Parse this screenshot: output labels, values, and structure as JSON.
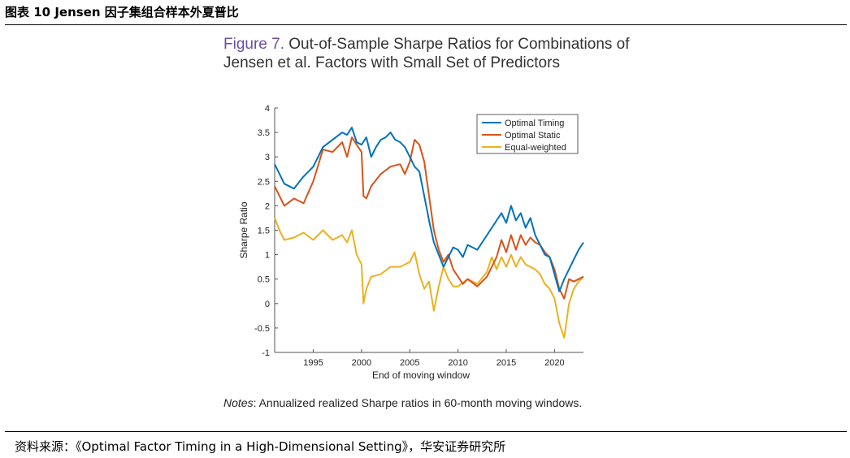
{
  "header": {
    "title": "图表 10 Jensen 因子集组合样本外夏普比"
  },
  "figure": {
    "label": "Figure 7.",
    "title": "Out-of-Sample Sharpe Ratios for Combinations of Jensen et al. Factors with Small Set of Predictors",
    "notes_label": "Notes",
    "notes_text": ": Annualized realized Sharpe ratios in 60-month moving windows."
  },
  "source": "资料来源：《Optimal Factor Timing in a High-Dimensional Setting》，华安证券研究所",
  "chart_data": {
    "type": "line",
    "title": "",
    "xlabel": "End of moving window",
    "ylabel": "Sharpe Ratio",
    "xlim": [
      1991,
      2023
    ],
    "ylim": [
      -1,
      4
    ],
    "xticks": [
      1995,
      2000,
      2005,
      2010,
      2015,
      2020
    ],
    "yticks": [
      4,
      3.5,
      3,
      2.5,
      2,
      1.5,
      1,
      0.5,
      0,
      -0.5,
      -1
    ],
    "legend_position": "top-right",
    "series": [
      {
        "name": "Optimal Timing",
        "color": "#0072BD",
        "x": [
          1991,
          1992,
          1993,
          1994,
          1995,
          1996,
          1997,
          1998,
          1998.5,
          1999,
          1999.5,
          2000,
          2000.5,
          2001,
          2001.5,
          2002,
          2002.5,
          2003,
          2003.5,
          2004,
          2004.5,
          2005,
          2005.5,
          2006,
          2006.5,
          2007,
          2007.5,
          2008,
          2008.5,
          2009,
          2009.5,
          2010,
          2010.5,
          2011,
          2012,
          2013,
          2014,
          2014.5,
          2015,
          2015.5,
          2016,
          2016.5,
          2017,
          2017.5,
          2018,
          2018.5,
          2019,
          2019.5,
          2020,
          2020.5,
          2021,
          2021.5,
          2022,
          2022.5,
          2023
        ],
        "values": [
          2.85,
          2.45,
          2.35,
          2.6,
          2.8,
          3.2,
          3.35,
          3.5,
          3.45,
          3.6,
          3.3,
          3.25,
          3.4,
          3.0,
          3.2,
          3.35,
          3.4,
          3.5,
          3.35,
          3.3,
          3.2,
          3.0,
          2.8,
          2.7,
          2.2,
          1.7,
          1.25,
          1.0,
          0.75,
          0.95,
          1.15,
          1.1,
          0.95,
          1.2,
          1.1,
          1.4,
          1.7,
          1.85,
          1.65,
          2.0,
          1.7,
          1.85,
          1.55,
          1.75,
          1.4,
          1.2,
          1.0,
          0.95,
          0.6,
          0.25,
          0.5,
          0.7,
          0.9,
          1.1,
          1.25
        ]
      },
      {
        "name": "Optimal Static",
        "color": "#D95319",
        "x": [
          1991,
          1992,
          1993,
          1994,
          1995,
          1996,
          1997,
          1998,
          1998.5,
          1999,
          1999.5,
          2000,
          2000.2,
          2000.5,
          2001,
          2002,
          2003,
          2004,
          2004.5,
          2005,
          2005.5,
          2006,
          2006.5,
          2007,
          2007.5,
          2008,
          2008.5,
          2009,
          2009.5,
          2010,
          2010.5,
          2011,
          2012,
          2013,
          2013.5,
          2014,
          2014.5,
          2015,
          2015.5,
          2016,
          2016.5,
          2017,
          2017.5,
          2018,
          2018.5,
          2019,
          2019.5,
          2020,
          2020.5,
          2021,
          2021.5,
          2022,
          2022.5,
          2023
        ],
        "values": [
          2.4,
          2.0,
          2.15,
          2.05,
          2.5,
          3.15,
          3.1,
          3.3,
          3.0,
          3.4,
          3.25,
          3.1,
          2.2,
          2.15,
          2.4,
          2.65,
          2.8,
          2.85,
          2.65,
          2.9,
          3.35,
          3.25,
          2.9,
          2.2,
          1.5,
          1.1,
          0.85,
          1.0,
          0.7,
          0.55,
          0.4,
          0.5,
          0.35,
          0.55,
          0.75,
          0.95,
          1.3,
          1.05,
          1.4,
          1.1,
          1.4,
          1.2,
          1.35,
          1.25,
          1.2,
          1.05,
          0.95,
          0.7,
          0.3,
          0.1,
          0.5,
          0.45,
          0.5,
          0.55
        ]
      },
      {
        "name": "Equal-weighted",
        "color": "#EDB120",
        "x": [
          1991,
          1991.5,
          1992,
          1993,
          1994,
          1995,
          1996,
          1997,
          1998,
          1998.5,
          1999,
          1999.5,
          2000,
          2000.2,
          2000.5,
          2001,
          2002,
          2003,
          2004,
          2005,
          2005.5,
          2006,
          2006.5,
          2007,
          2007.5,
          2008,
          2008.5,
          2009,
          2009.5,
          2010,
          2011,
          2012,
          2013,
          2013.5,
          2014,
          2014.5,
          2015,
          2015.5,
          2016,
          2016.5,
          2017,
          2017.5,
          2018,
          2018.5,
          2019,
          2019.5,
          2020,
          2020.5,
          2021,
          2021.5,
          2022,
          2022.5,
          2023
        ],
        "values": [
          1.75,
          1.5,
          1.3,
          1.35,
          1.45,
          1.3,
          1.5,
          1.3,
          1.4,
          1.25,
          1.5,
          1.0,
          0.8,
          0.0,
          0.3,
          0.55,
          0.6,
          0.75,
          0.75,
          0.85,
          1.05,
          0.6,
          0.3,
          0.45,
          -0.15,
          0.35,
          0.75,
          0.5,
          0.35,
          0.35,
          0.5,
          0.4,
          0.65,
          0.95,
          0.7,
          0.95,
          0.75,
          1.0,
          0.75,
          0.95,
          0.8,
          0.75,
          0.7,
          0.6,
          0.4,
          0.3,
          0.1,
          -0.4,
          -0.7,
          0.0,
          0.3,
          0.45,
          0.55
        ]
      }
    ]
  }
}
